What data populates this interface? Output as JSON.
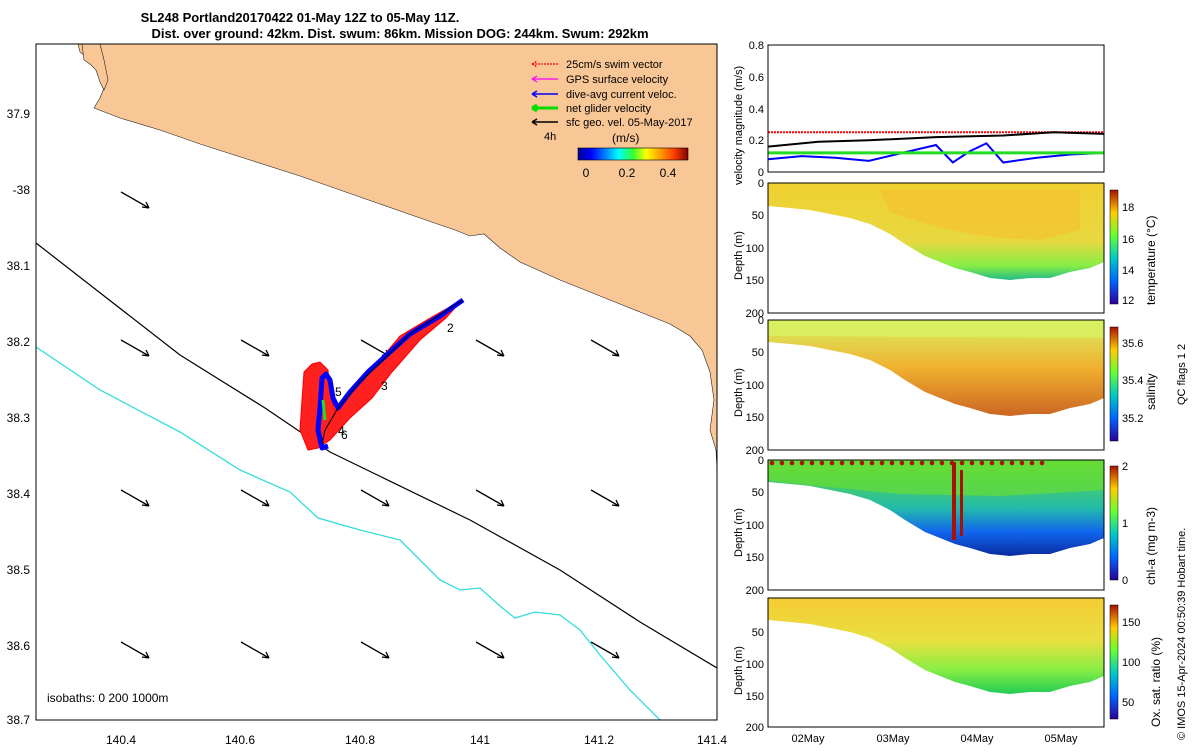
{
  "title": {
    "line1": "SL248 Portland20170422 01-May 12Z to 05-May 11Z.",
    "line2": "Dist. over ground: 42km. Dist. swum: 86km. Mission DOG: 244km. Swum: 292km"
  },
  "map": {
    "lat_ticks": [
      "37.9",
      "-38",
      "38.1",
      "38.2",
      "38.3",
      "38.4",
      "38.5",
      "38.6",
      "38.7"
    ],
    "lon_ticks": [
      "140.4",
      "140.6",
      "140.8",
      "141",
      "141.2",
      "141.4"
    ],
    "isobath_note": "isobaths: 0   200  1000m",
    "legend": [
      {
        "label": "25cm/s swim vector",
        "color": "#ff0000"
      },
      {
        "label": "GPS surface velocity",
        "color": "#ff00ff"
      },
      {
        "label": "dive-avg current veloc.",
        "color": "#0000ff"
      },
      {
        "label": "net glider velocity",
        "color": "#00dd00"
      },
      {
        "label": "sfc geo. vel. 05-May-2017",
        "color": "#000000"
      }
    ],
    "time_label": "4h",
    "colorbar": {
      "label": "(m/s)",
      "ticks": [
        "0",
        "0.2",
        "0.4"
      ]
    },
    "waypoints": [
      "2",
      "3",
      "5",
      "4",
      "6"
    ],
    "colors": {
      "land": "#f9c796",
      "isobath_200": "#000000",
      "isobath_1000": "#33dddd"
    }
  },
  "chart_data": [
    {
      "type": "line",
      "title": "velocity magnitude",
      "ylabel": "velocity magnitude (m/s)",
      "ylim": [
        0,
        0.8
      ],
      "yticks": [
        "0.8",
        "0.6",
        "0.4",
        "0.2",
        "0"
      ],
      "series": [
        {
          "name": "swim vector",
          "color": "#ff0000",
          "x": [
            0,
            1
          ],
          "values": [
            0.25,
            0.25
          ]
        },
        {
          "name": "sfc geo. vel.",
          "color": "#000000",
          "x": [
            0,
            0.15,
            0.3,
            0.5,
            0.7,
            0.85,
            1
          ],
          "values": [
            0.16,
            0.19,
            0.2,
            0.22,
            0.23,
            0.25,
            0.24
          ]
        },
        {
          "name": "dive-avg current",
          "color": "#0000ff",
          "x": [
            0,
            0.1,
            0.2,
            0.3,
            0.4,
            0.5,
            0.55,
            0.6,
            0.65,
            0.7,
            0.8,
            0.9,
            1
          ],
          "values": [
            0.08,
            0.1,
            0.09,
            0.07,
            0.12,
            0.17,
            0.06,
            0.13,
            0.18,
            0.06,
            0.09,
            0.11,
            0.12
          ]
        },
        {
          "name": "net glider velocity",
          "color": "#22dd22",
          "x": [
            0,
            1
          ],
          "values": [
            0.12,
            0.12
          ]
        }
      ]
    },
    {
      "type": "heatmap",
      "ylabel": "Depth (m)",
      "zlabel": "temperature (°C)",
      "yticks": [
        "0",
        "50",
        "100",
        "150",
        "200"
      ],
      "ctick": [
        "18",
        "16",
        "14",
        "12"
      ],
      "x": [
        0,
        0.1,
        0.2,
        0.3,
        0.4,
        0.5,
        0.6,
        0.7,
        0.8,
        0.9,
        1
      ],
      "bottom_depth": [
        75,
        78,
        88,
        100,
        125,
        150,
        140,
        140,
        130,
        120,
        115
      ]
    },
    {
      "type": "heatmap",
      "ylabel": "Depth (m)",
      "zlabel": "salinity",
      "yticks": [
        "0",
        "50",
        "100",
        "150",
        "200"
      ],
      "ctick": [
        "35.6",
        "35.4",
        "35.2"
      ]
    },
    {
      "type": "heatmap",
      "ylabel": "Depth (m)",
      "zlabel": "chl-a (mg m-3)",
      "yticks": [
        "0",
        "50",
        "100",
        "150",
        "200"
      ],
      "ctick": [
        "2",
        "1",
        "0"
      ]
    },
    {
      "type": "heatmap",
      "ylabel": "Depth (m)",
      "zlabel": "Ox. sat. ratio (%)",
      "yticks": [
        "50",
        "100",
        "150",
        "200"
      ],
      "ctick": [
        "150",
        "100",
        "50"
      ],
      "xticks": [
        "02May",
        "03May",
        "04May",
        "05May"
      ]
    }
  ],
  "side_note": "QC flags 1  2",
  "footer": "© IMOS 15-Apr-2024 00:50:39 Hobart time."
}
